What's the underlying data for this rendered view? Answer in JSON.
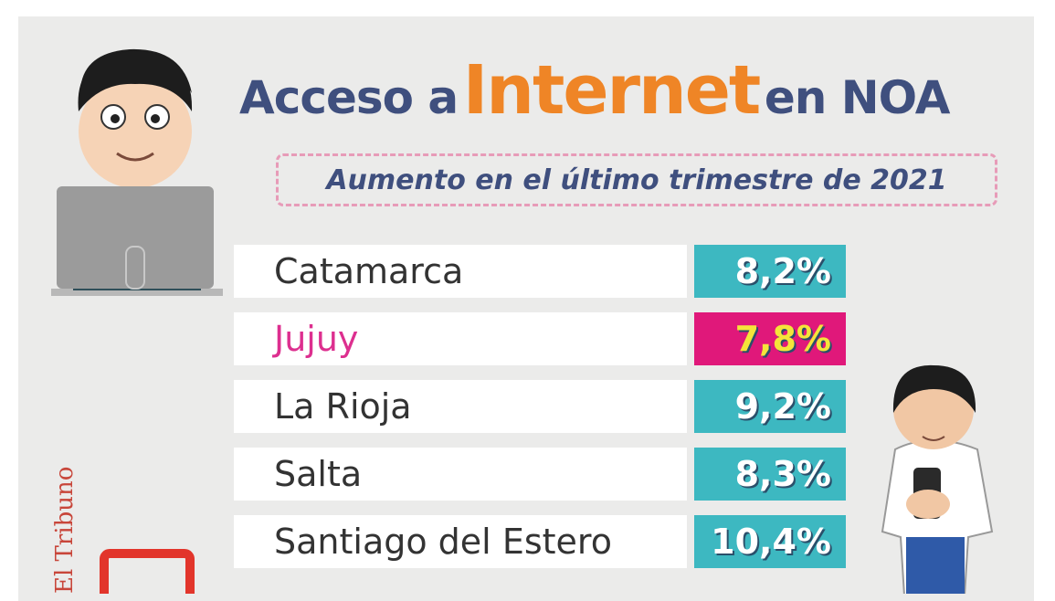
{
  "title": {
    "part1": "Acceso a",
    "part2": "Internet",
    "part3": "en NOA"
  },
  "subtitle": "Aumento en el último trimestre de 2021",
  "brand": "El Tribuno",
  "colors": {
    "title": "#3f4f7e",
    "accent": "#ef8526",
    "bar": "#3db8c1",
    "highlight_bg": "#e0187a",
    "highlight_text": "#f5e43a",
    "highlight_label": "#dd2f8f"
  },
  "chart_data": {
    "type": "table",
    "categories": [
      "Catamarca",
      "Jujuy",
      "La Rioja",
      "Salta",
      "Santiago del Estero"
    ],
    "labels": [
      "8,2%",
      "7,8%",
      "9,2%",
      "8,3%",
      "10,4%"
    ],
    "values": [
      8.2,
      7.8,
      9.2,
      8.3,
      10.4
    ],
    "highlighted": "Jujuy"
  }
}
